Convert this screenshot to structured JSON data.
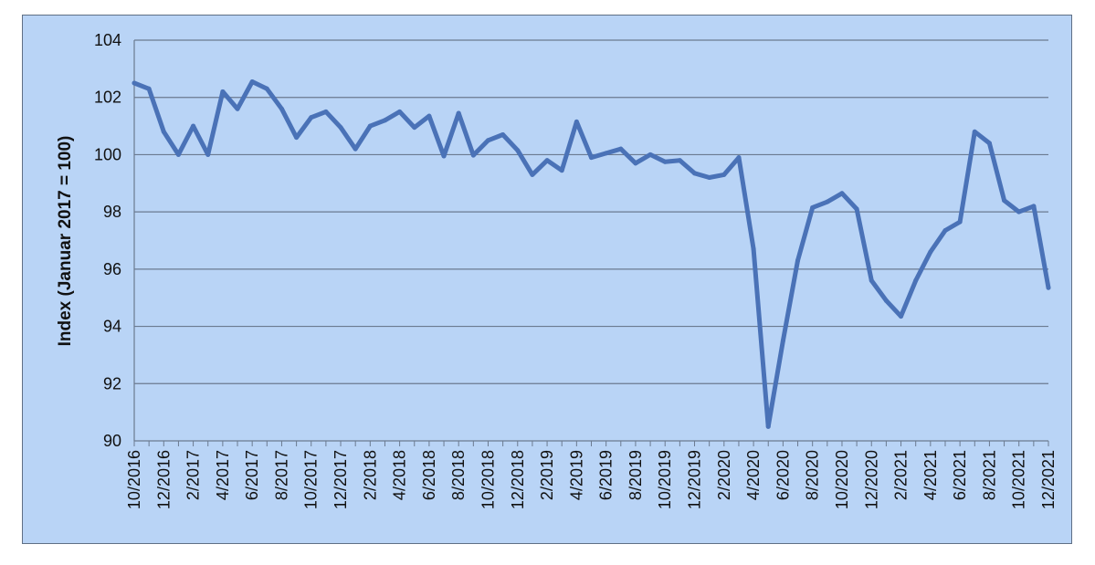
{
  "chart_data": {
    "type": "line",
    "ylabel": "Index (Januar 2017 = 100)",
    "xlabel": "",
    "ylim": [
      90,
      104
    ],
    "y_ticks": [
      90,
      92,
      94,
      96,
      98,
      100,
      102,
      104
    ],
    "grid": true,
    "legend": "none",
    "colors": {
      "background": "#b9d4f6",
      "line": "#4a72b7",
      "grid": "#6b7a90"
    },
    "x_tick_labels": [
      "10/2016",
      "12/2016",
      "2/2017",
      "4/2017",
      "6/2017",
      "8/2017",
      "10/2017",
      "12/2017",
      "2/2018",
      "4/2018",
      "6/2018",
      "8/2018",
      "10/2018",
      "12/2018",
      "2/2019",
      "4/2019",
      "6/2019",
      "8/2019",
      "10/2019",
      "12/2019",
      "2/2020",
      "4/2020",
      "6/2020",
      "8/2020",
      "10/2020",
      "12/2020",
      "2/2021",
      "4/2021",
      "6/2021",
      "8/2021",
      "10/2021",
      "12/2021"
    ],
    "series": [
      {
        "x": [
          "10/2016",
          "11/2016",
          "12/2016",
          "1/2017",
          "2/2017",
          "3/2017",
          "4/2017",
          "5/2017",
          "6/2017",
          "7/2017",
          "8/2017",
          "9/2017",
          "10/2017",
          "11/2017",
          "12/2017",
          "1/2018",
          "2/2018",
          "3/2018",
          "4/2018",
          "5/2018",
          "6/2018",
          "7/2018",
          "8/2018",
          "9/2018",
          "10/2018",
          "11/2018",
          "12/2018",
          "1/2019",
          "2/2019",
          "3/2019",
          "4/2019",
          "5/2019",
          "6/2019",
          "7/2019",
          "8/2019",
          "9/2019",
          "10/2019",
          "11/2019",
          "12/2019",
          "1/2020",
          "2/2020",
          "3/2020",
          "4/2020",
          "5/2020",
          "6/2020",
          "7/2020",
          "8/2020",
          "9/2020",
          "10/2020",
          "11/2020",
          "12/2020",
          "1/2021",
          "2/2021",
          "3/2021",
          "4/2021",
          "5/2021",
          "6/2021",
          "7/2021",
          "8/2021",
          "9/2021",
          "10/2021",
          "11/2021",
          "12/2021"
        ],
        "values": [
          102.5,
          102.3,
          100.8,
          100.0,
          101.0,
          100.0,
          102.2,
          101.6,
          102.55,
          102.3,
          101.6,
          100.6,
          101.3,
          101.5,
          100.95,
          100.2,
          101.0,
          101.2,
          101.5,
          100.95,
          101.35,
          99.95,
          101.45,
          99.98,
          100.5,
          100.7,
          100.15,
          99.3,
          99.8,
          99.45,
          101.15,
          99.9,
          100.05,
          100.2,
          99.7,
          100.0,
          99.75,
          99.8,
          99.35,
          99.2,
          99.3,
          99.9,
          96.7,
          90.5,
          93.5,
          96.3,
          98.15,
          98.35,
          98.65,
          98.1,
          95.6,
          94.9,
          94.35,
          95.6,
          96.6,
          97.35,
          97.65,
          100.8,
          100.4,
          98.4,
          98.0,
          98.2,
          95.35
        ]
      }
    ]
  }
}
